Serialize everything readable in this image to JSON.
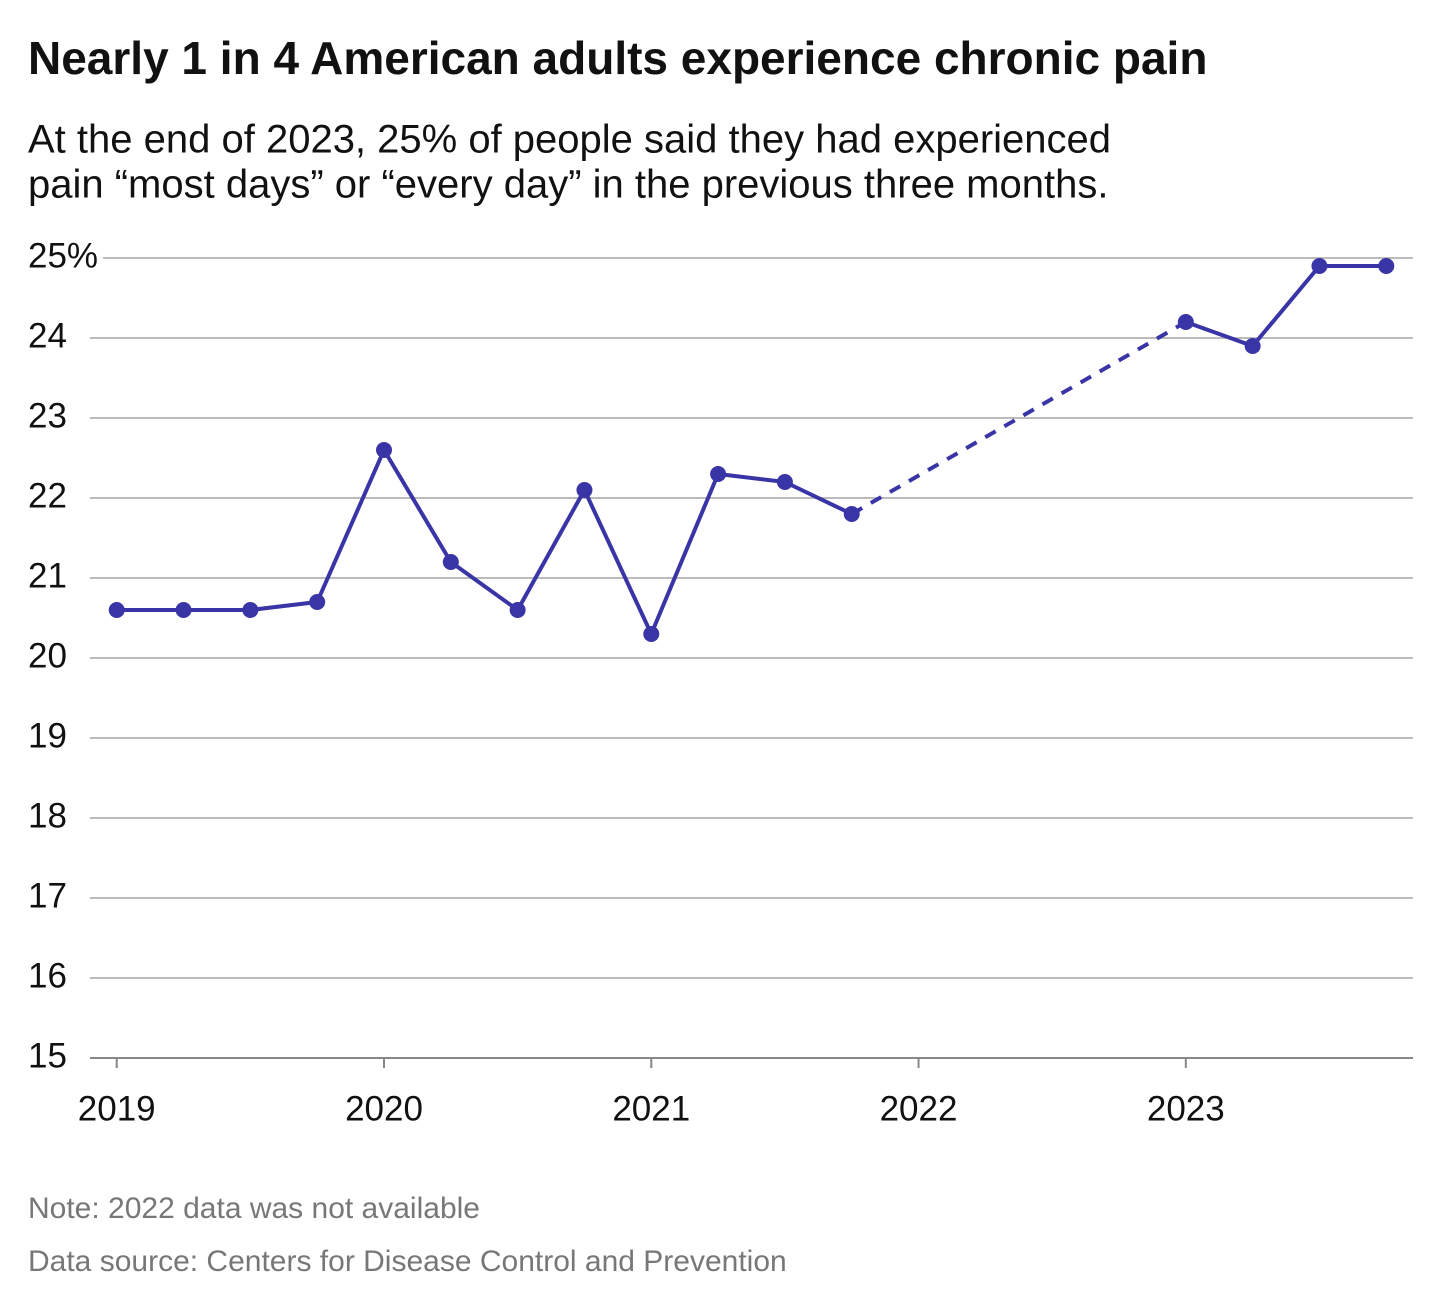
{
  "chart_data": {
    "type": "line",
    "title": "Nearly 1 in 4 American adults experience chronic pain",
    "subtitle": [
      "At the end of 2023, 25% of people said they had experienced",
      "pain “most days” or “every day” in the previous three months."
    ],
    "x": [
      2019,
      2019.25,
      2019.5,
      2019.75,
      2020,
      2020.25,
      2020.5,
      2020.75,
      2021,
      2021.25,
      2021.5,
      2021.75,
      2022,
      2022.25,
      2022.5,
      2022.75,
      2023,
      2023.25,
      2023.5,
      2023.75
    ],
    "values": [
      20.6,
      20.6,
      20.6,
      20.7,
      22.6,
      21.2,
      20.6,
      22.1,
      20.3,
      22.3,
      22.2,
      21.8,
      null,
      null,
      null,
      null,
      24.2,
      23.9,
      24.9,
      24.9
    ],
    "color": "#3a35a6",
    "gap_style": "dashed",
    "xlim": [
      2018.9,
      2023.85
    ],
    "xticks": [
      2019,
      2020,
      2021,
      2022,
      2023
    ],
    "ylim": [
      15,
      25
    ],
    "yticks": [
      15,
      16,
      17,
      18,
      19,
      20,
      21,
      22,
      23,
      24,
      {
        "value": 25,
        "label": "25%"
      }
    ],
    "grid": true,
    "note": "Note: 2022 data was not available",
    "source": "Data source: Centers for Disease Control and Prevention"
  }
}
